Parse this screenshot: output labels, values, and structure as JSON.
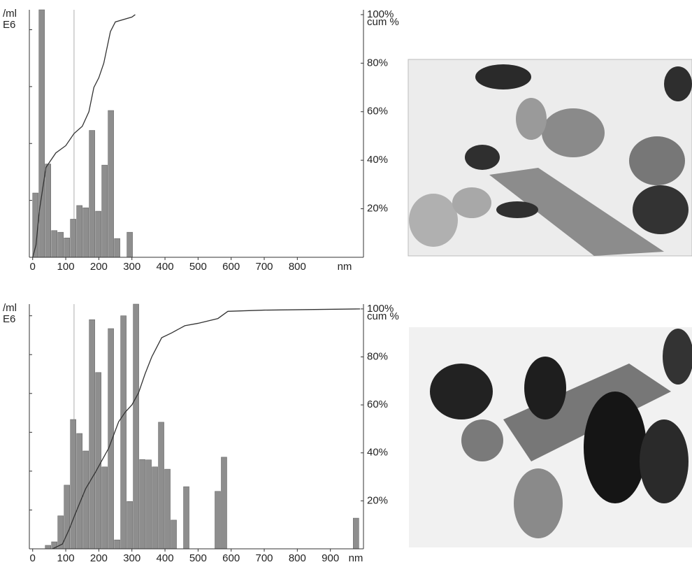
{
  "chart_data": [
    {
      "type": "histogram",
      "y_unit": "/ml",
      "y_scale": "E6",
      "x_unit": "nm",
      "bins": [
        0,
        19,
        38,
        57,
        76,
        95,
        114,
        133,
        152,
        171,
        190,
        209,
        228,
        247,
        266,
        285,
        304
      ],
      "counts": [
        1.13,
        4.35,
        1.64,
        0.47,
        0.44,
        0.34,
        0.67,
        0.91,
        0.87,
        2.23,
        0.81,
        1.62,
        2.58,
        0.33,
        0,
        0.44
      ],
      "bar_color": "#8e8e8e",
      "cumulative": {
        "x": [
          0,
          10,
          20,
          40,
          70,
          100,
          125,
          150,
          170,
          185,
          200,
          215,
          235,
          250,
          300,
          310
        ],
        "values": [
          0,
          5,
          19,
          37,
          43,
          46,
          51,
          54,
          60,
          70,
          74,
          80,
          93,
          97,
          99,
          100
        ],
        "axis": "y2",
        "color": "#333333"
      },
      "reference_x": 125,
      "xlim": [
        -10,
        1000
      ],
      "xticks": [
        0,
        100,
        200,
        300,
        400,
        500,
        600,
        700,
        800
      ],
      "ylim": [
        0,
        4.35
      ],
      "yticks": [
        1,
        2,
        3,
        4
      ],
      "y2lim": [
        0,
        102
      ],
      "y2ticks": [
        {
          "value": 20,
          "label": "20%"
        },
        {
          "value": 40,
          "label": "40%"
        },
        {
          "value": 60,
          "label": "60%"
        },
        {
          "value": 80,
          "label": "80%"
        },
        {
          "value": 100,
          "label": "100%"
        }
      ],
      "y2_label": "cum %"
    },
    {
      "type": "histogram",
      "y_unit": "/ml",
      "y_scale": "E6",
      "x_unit": "nm",
      "bins": [
        38,
        57,
        76,
        95,
        114,
        133,
        152,
        171,
        190,
        209,
        228,
        247,
        266,
        285,
        304,
        323,
        342,
        361,
        380,
        399,
        418,
        437,
        456,
        475,
        494,
        513,
        532,
        551,
        570,
        589,
        608,
        627,
        646,
        665,
        684,
        703,
        722,
        741,
        760,
        779,
        798,
        817,
        836,
        855,
        874,
        893,
        912,
        931,
        950,
        969,
        988
      ],
      "counts": [
        0.09,
        0.18,
        0.85,
        1.64,
        3.33,
        2.97,
        2.52,
        5.9,
        4.54,
        2.11,
        5.67,
        0.23,
        6.0,
        1.22,
        6.3,
        2.3,
        2.29,
        2.11,
        3.26,
        2.05,
        0.74,
        0,
        1.6,
        0,
        0,
        0,
        0,
        1.48,
        2.36,
        0,
        0,
        0,
        0,
        0,
        0,
        0,
        0,
        0,
        0,
        0,
        0,
        0,
        0,
        0,
        0,
        0,
        0,
        0,
        0,
        0.79
      ],
      "bar_color": "#8e8e8e",
      "cumulative": {
        "x": [
          60,
          90,
          110,
          130,
          160,
          190,
          230,
          260,
          280,
          300,
          320,
          340,
          360,
          390,
          420,
          460,
          500,
          560,
          590,
          700,
          990
        ],
        "values": [
          0,
          2,
          8,
          15,
          25,
          32,
          42,
          53,
          57,
          60,
          65,
          73,
          80,
          88,
          90,
          93,
          94,
          96,
          99,
          99.5,
          100
        ],
        "axis": "y2",
        "color": "#333333"
      },
      "reference_x": 125,
      "xlim": [
        -10,
        1000
      ],
      "xticks": [
        0,
        100,
        200,
        300,
        400,
        500,
        600,
        700,
        800,
        900
      ],
      "ylim": [
        0,
        6.3
      ],
      "yticks": [
        1,
        2,
        3,
        4,
        5,
        6
      ],
      "y2lim": [
        0,
        102
      ],
      "y2ticks": [
        {
          "value": 20,
          "label": "20%"
        },
        {
          "value": 40,
          "label": "40%"
        },
        {
          "value": 60,
          "label": "60%"
        },
        {
          "value": 80,
          "label": "80%"
        },
        {
          "value": 100,
          "label": "100%"
        }
      ],
      "y2_label": "cum %"
    }
  ]
}
